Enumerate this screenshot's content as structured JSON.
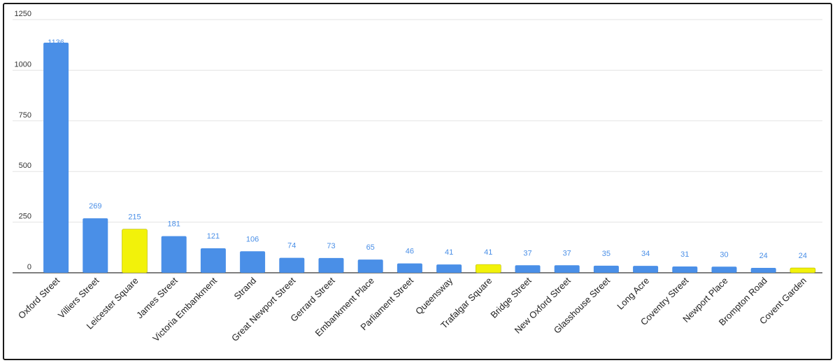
{
  "chart_data": {
    "type": "bar",
    "title": "",
    "xlabel": "",
    "ylabel": "",
    "ylim": [
      0,
      1250
    ],
    "yticks": [
      0,
      250,
      500,
      750,
      1000,
      1250
    ],
    "grid": true,
    "legend": "none",
    "categories": [
      "Oxford Street",
      "Villiers Street",
      "Leicester Square",
      "James Street",
      "Victoria Embankment",
      "Strand",
      "Great Newport Street",
      "Gerrard Street",
      "Embankment Place",
      "Parliament Street",
      "Queensway",
      "Trafalgar Square",
      "Bridge Street",
      "New Oxford Street",
      "Glasshouse Street",
      "Long Acre",
      "Coventry Street",
      "Newport Place",
      "Brompton Road",
      "Covent Garden"
    ],
    "values": [
      1136,
      269,
      215,
      181,
      121,
      106,
      74,
      73,
      65,
      46,
      41,
      41,
      37,
      37,
      35,
      34,
      31,
      30,
      24,
      24
    ],
    "highlighted": [
      "Leicester Square",
      "Trafalgar Square",
      "Covent Garden"
    ],
    "colors": {
      "bar": "#4a8fe7",
      "highlight": "#f2f20a",
      "label": "#4a8fe7",
      "grid": "#e3e3e3",
      "axis": "#333333"
    }
  }
}
